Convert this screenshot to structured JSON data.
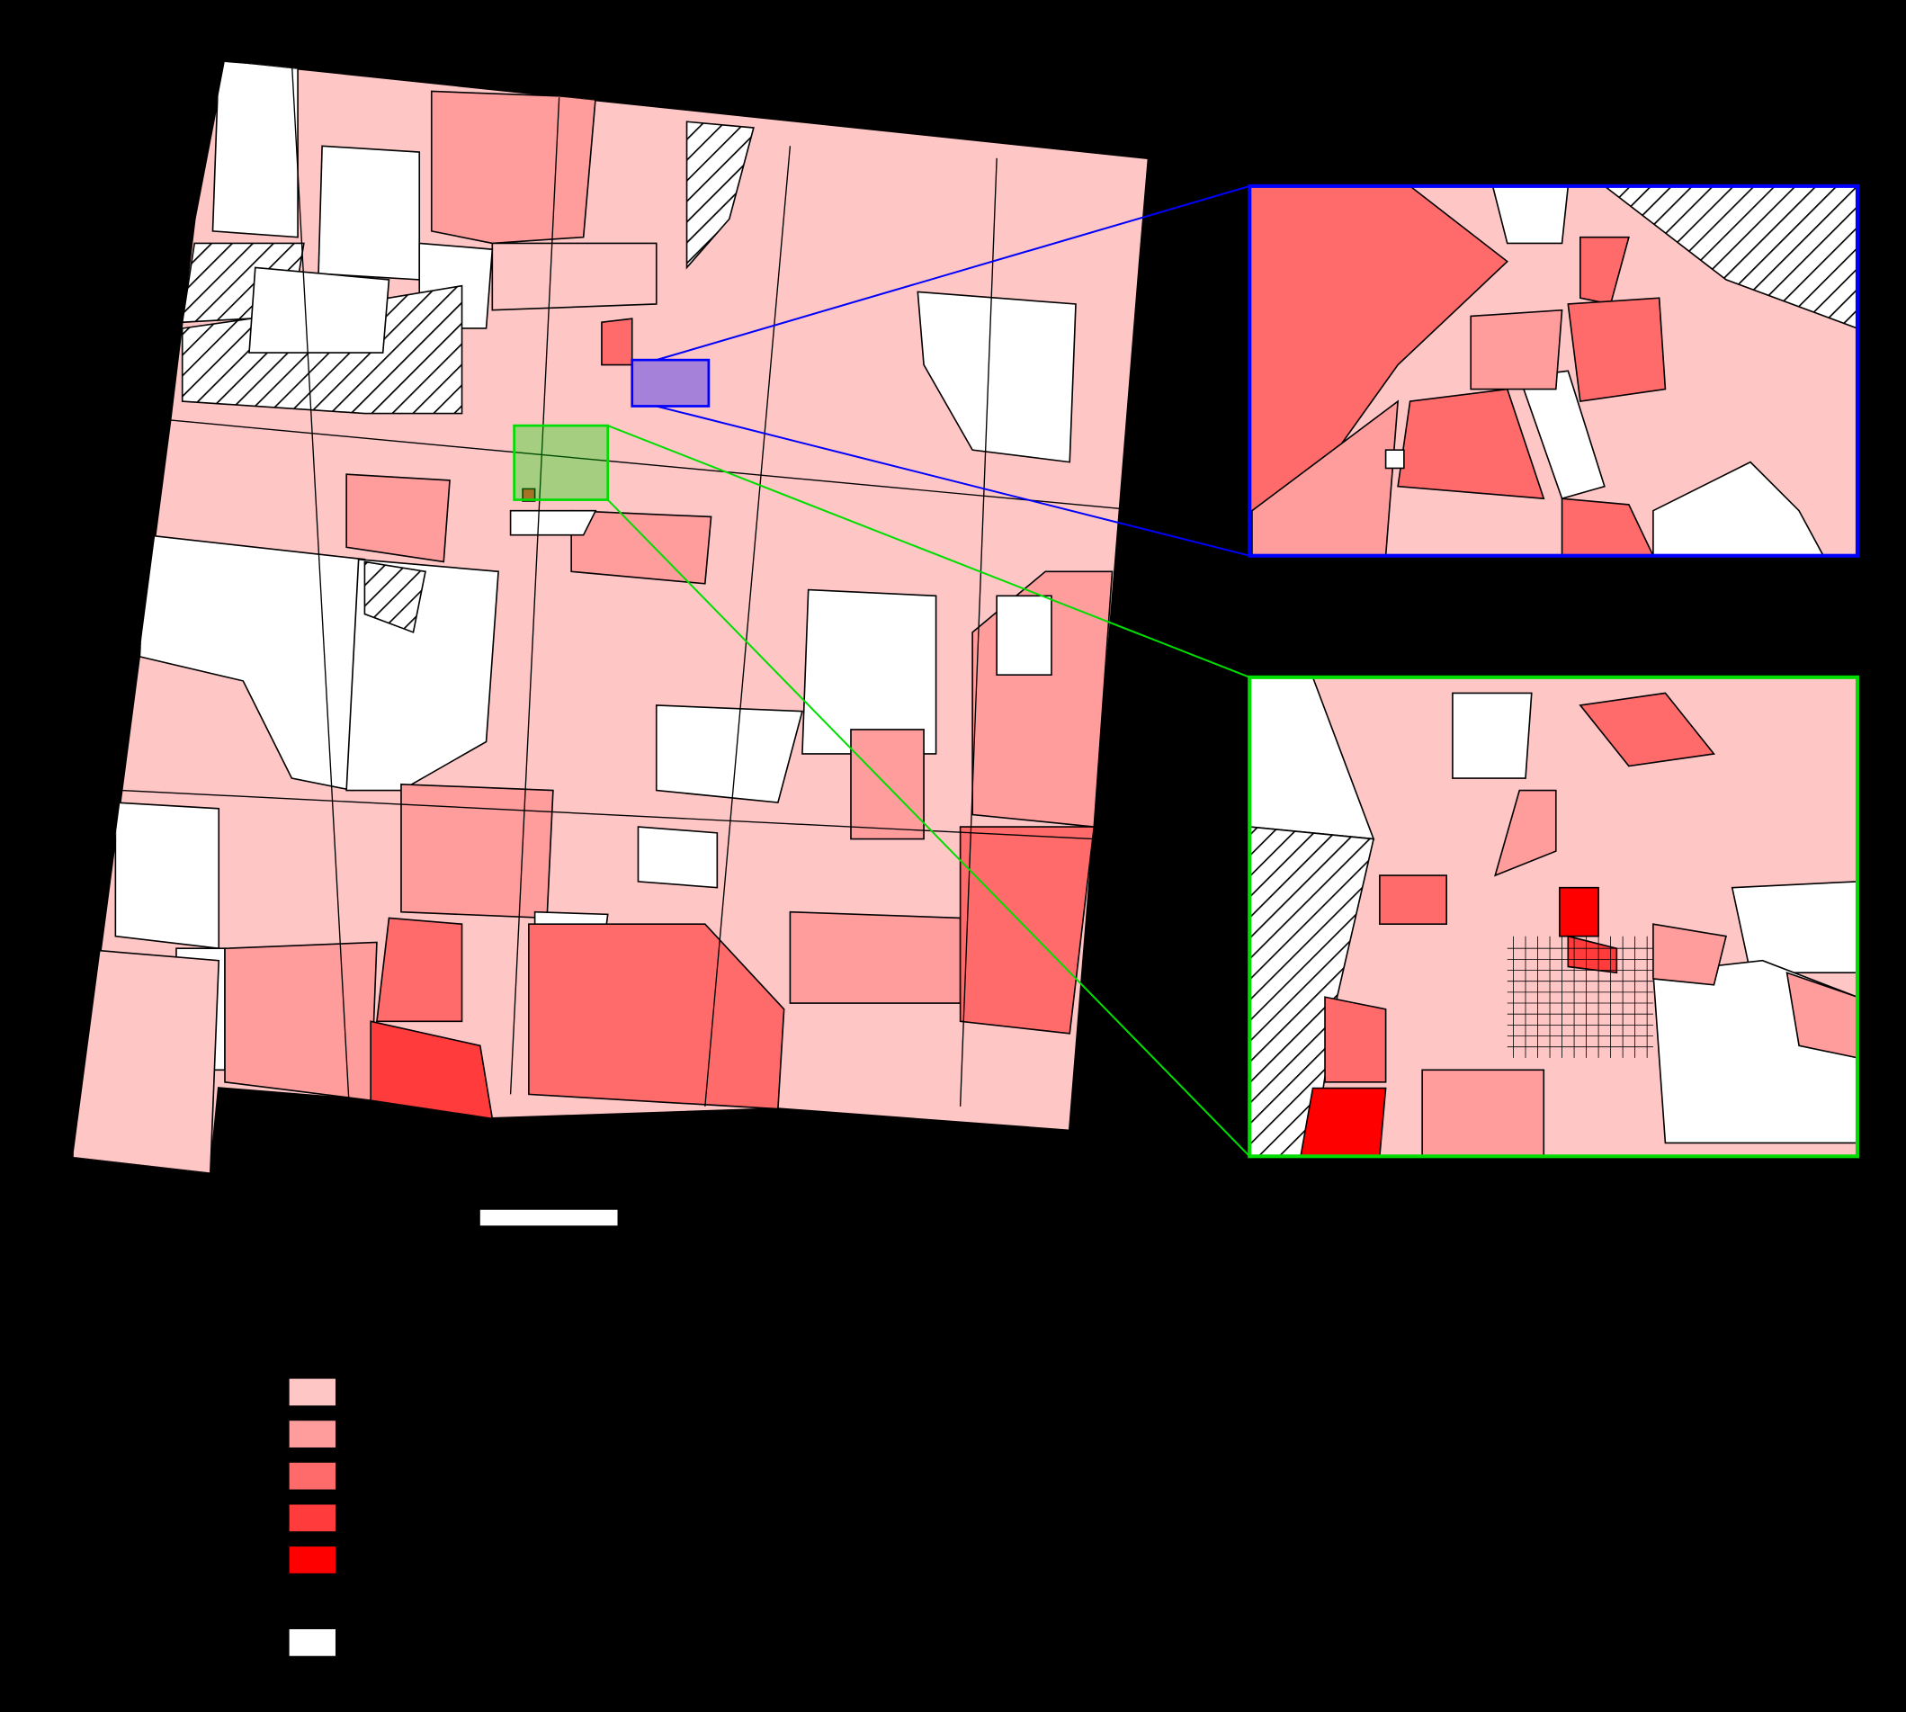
{
  "map": {
    "legend": {
      "colors": [
        "#ffc6c6",
        "#ff9c9c",
        "#ff6b6b",
        "#ff3b3b",
        "#ff0000"
      ],
      "no_data_color": "#ffffff"
    },
    "insets": [
      {
        "color": "#0000ff"
      },
      {
        "color": "#00dd00"
      }
    ]
  }
}
